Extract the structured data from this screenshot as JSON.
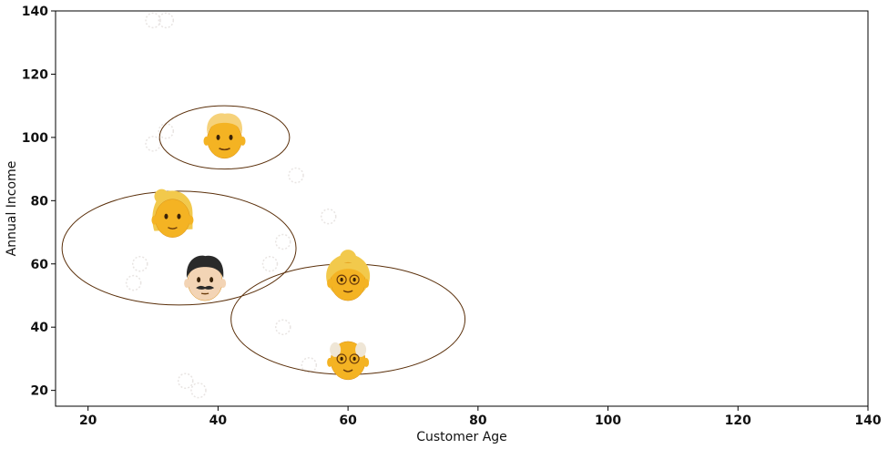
{
  "chart_data": {
    "type": "scatter",
    "xlabel": "Customer Age",
    "ylabel": "Annual Income",
    "xlim": [
      15,
      140
    ],
    "ylim": [
      15,
      140
    ],
    "xticks": [
      20,
      40,
      60,
      80,
      100,
      120,
      140
    ],
    "yticks": [
      20,
      40,
      60,
      80,
      100,
      120,
      140
    ],
    "grid": false,
    "colors": {
      "face": "#f4b323",
      "face_dark": "#d8901a",
      "hair_blond": "#f2c94c",
      "hair_dark": "#2a2a2a",
      "skin_light": "#f3d4b5",
      "ellipse": "#5a2f0a",
      "faint_marker": "#e8e4e2"
    },
    "cluster_centers": [
      {
        "x": 41,
        "y": 100,
        "icon": "man-blond-face-icon"
      },
      {
        "x": 33,
        "y": 75,
        "icon": "woman-blond-face-icon"
      },
      {
        "x": 38,
        "y": 55,
        "icon": "man-mustache-face-icon"
      },
      {
        "x": 60,
        "y": 55,
        "icon": "older-woman-face-icon"
      },
      {
        "x": 60,
        "y": 30,
        "icon": "older-man-face-icon"
      }
    ],
    "cluster_ellipses": [
      {
        "cx": 41,
        "cy": 100,
        "rx": 10,
        "ry": 10
      },
      {
        "cx": 34,
        "cy": 65,
        "rx": 18,
        "ry": 18
      },
      {
        "cx": 60,
        "cy": 42.5,
        "rx": 18,
        "ry": 17.5
      }
    ],
    "faint_points": [
      {
        "x": 30,
        "y": 137
      },
      {
        "x": 32,
        "y": 137
      },
      {
        "x": 30,
        "y": 98
      },
      {
        "x": 32,
        "y": 102
      },
      {
        "x": 52,
        "y": 88
      },
      {
        "x": 57,
        "y": 75
      },
      {
        "x": 50,
        "y": 67
      },
      {
        "x": 28,
        "y": 60
      },
      {
        "x": 27,
        "y": 54
      },
      {
        "x": 48,
        "y": 60
      },
      {
        "x": 50,
        "y": 40
      },
      {
        "x": 54,
        "y": 28
      },
      {
        "x": 35,
        "y": 23
      },
      {
        "x": 37,
        "y": 20
      }
    ]
  }
}
